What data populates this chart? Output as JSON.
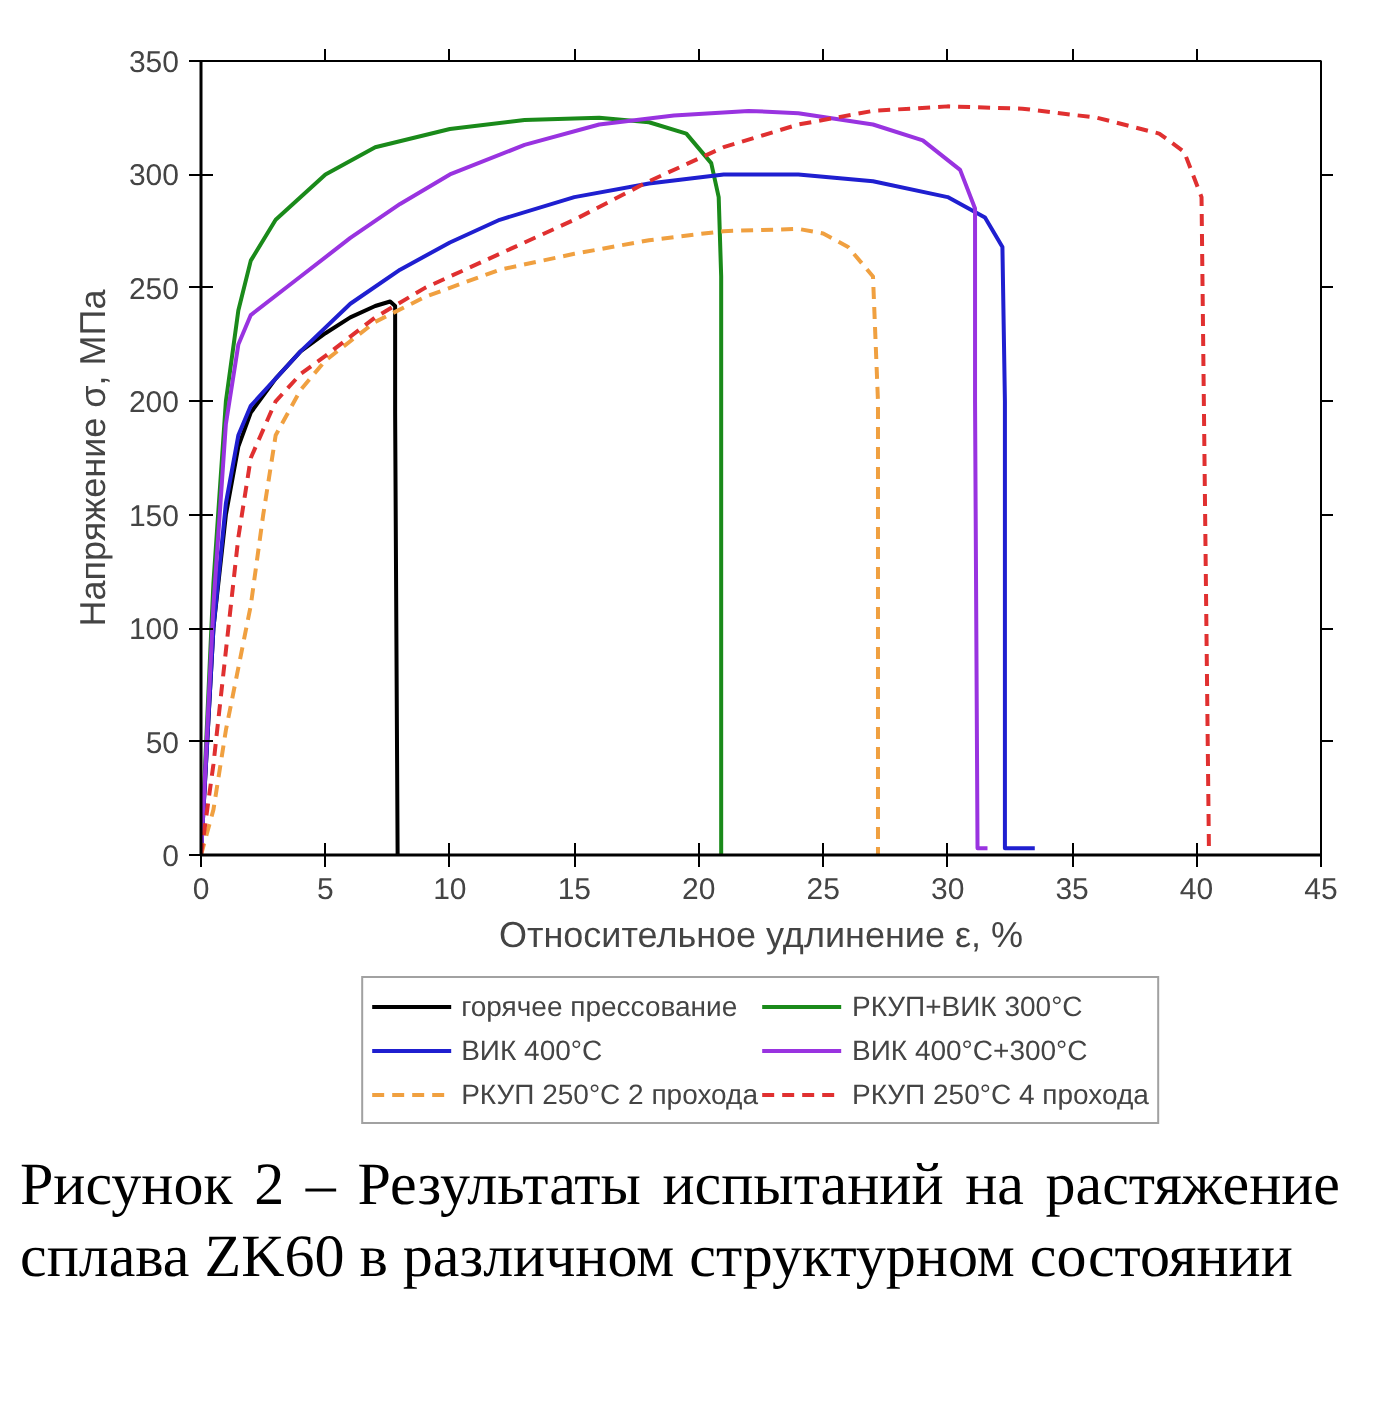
{
  "chart_data": {
    "type": "line",
    "xlabel": "Относительное удлинение ε, %",
    "ylabel": "Напряжение σ, МПа",
    "xlim": [
      0,
      45
    ],
    "ylim": [
      0,
      350
    ],
    "xticks": [
      0,
      5,
      10,
      15,
      20,
      25,
      30,
      35,
      40,
      45
    ],
    "yticks": [
      0,
      50,
      100,
      150,
      200,
      250,
      300,
      350
    ],
    "grid": false,
    "legend": "bottom",
    "marker": "none",
    "line_style": "solid",
    "annotations": [
      "Рисунок 2 – Результаты испытаний на растяжение сплава ZK60 в различном структурном состоянии"
    ],
    "series": [
      {
        "name": "горячее прессование",
        "color": "#000000",
        "x": [
          0,
          0.5,
          1,
          1.5,
          2,
          3,
          4,
          5,
          6,
          7,
          7.6,
          7.8,
          7.8,
          7.9
        ],
        "values": [
          0,
          100,
          150,
          180,
          195,
          210,
          222,
          230,
          237,
          242,
          244,
          242,
          195,
          0
        ]
      },
      {
        "name": "РКУП+ВИК 300°C",
        "color": "#1a8a1a",
        "x": [
          0,
          0.5,
          1,
          1.5,
          2,
          3,
          5,
          7,
          10,
          13,
          16,
          18,
          19.5,
          20.5,
          20.8,
          20.9,
          20.9
        ],
        "values": [
          0,
          120,
          200,
          240,
          262,
          280,
          300,
          312,
          320,
          324,
          325,
          323,
          318,
          305,
          290,
          255,
          0
        ]
      },
      {
        "name": "ВИК 400°C",
        "color": "#1f1fd0",
        "x": [
          0,
          0.5,
          1,
          1.5,
          2,
          4,
          6,
          8,
          10,
          12,
          15,
          18,
          21,
          24,
          27,
          30,
          31.5,
          32.2,
          32.3,
          32.3,
          33.5
        ],
        "values": [
          0,
          100,
          155,
          185,
          198,
          222,
          243,
          258,
          270,
          280,
          290,
          296,
          300,
          300,
          297,
          290,
          281,
          268,
          200,
          3,
          3
        ]
      },
      {
        "name": "ВИК 400°C+300°C",
        "color": "#9933e0",
        "x": [
          0,
          0.5,
          1,
          1.5,
          2,
          4,
          6,
          8,
          10,
          13,
          16,
          19,
          22,
          24,
          27,
          29,
          30.5,
          31.1,
          31.1,
          31.2,
          31.6
        ],
        "values": [
          0,
          110,
          190,
          225,
          238,
          255,
          272,
          287,
          300,
          313,
          322,
          326,
          328,
          327,
          322,
          315,
          302,
          285,
          200,
          3,
          3
        ]
      },
      {
        "name": "РКУП 250°C 2 прохода",
        "color": "#f0a040",
        "line_style": "dashed",
        "x": [
          0,
          0.5,
          1,
          2,
          2.5,
          3,
          4,
          5,
          7,
          9,
          12,
          15,
          18,
          21,
          24,
          25,
          26,
          27,
          27.2,
          27.2
        ],
        "values": [
          0,
          20,
          55,
          110,
          150,
          185,
          205,
          218,
          235,
          246,
          258,
          265,
          271,
          275,
          276,
          274,
          268,
          255,
          200,
          0
        ]
      },
      {
        "name": "РКУП 250°C 4 прохода",
        "color": "#e03030",
        "line_style": "dashed",
        "x": [
          0,
          0.5,
          1,
          1.5,
          2,
          3,
          4,
          5,
          7,
          9,
          12,
          15,
          18,
          21,
          24,
          27,
          30,
          33,
          36,
          38.5,
          39.5,
          40.2,
          40.5
        ],
        "values": [
          0,
          40,
          90,
          140,
          175,
          200,
          212,
          220,
          237,
          250,
          265,
          280,
          297,
          312,
          322,
          328,
          330,
          329,
          325,
          318,
          310,
          290,
          0
        ]
      }
    ]
  }
}
